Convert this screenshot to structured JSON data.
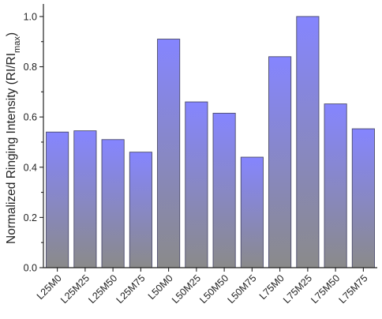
{
  "chart_data": {
    "type": "bar",
    "categories": [
      "L25M0",
      "L25M25",
      "L25M50",
      "L25M75",
      "L50M0",
      "L50M25",
      "L50M50",
      "L50M75",
      "L75M0",
      "L75M25",
      "L75M50",
      "L75M75"
    ],
    "values": [
      0.54,
      0.545,
      0.51,
      0.46,
      0.91,
      0.66,
      0.615,
      0.44,
      0.84,
      1.0,
      0.652,
      0.553
    ],
    "ylabel_main": "Normalized Ringing Intensity (RI/RI",
    "ylabel_sub": "max",
    "ylabel_end": ")",
    "ylim": [
      0.0,
      1.05
    ],
    "yticks": [
      "0.0",
      "0.2",
      "0.4",
      "0.6",
      "0.8",
      "1.0"
    ],
    "ytick_values": [
      0.0,
      0.2,
      0.4,
      0.6,
      0.8,
      1.0
    ],
    "grid": false,
    "bar_gradient": {
      "top": "#8585ff",
      "bottom": "#8a8a8a"
    }
  }
}
